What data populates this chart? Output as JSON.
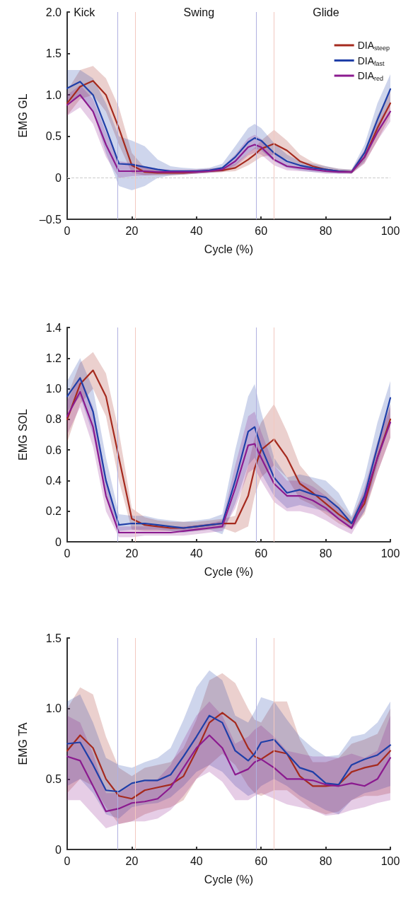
{
  "chart_data": [
    {
      "type": "line",
      "xlabel": "Cycle (%)",
      "ylabel": "EMG GL",
      "xlim": [
        0,
        100
      ],
      "xticks": [
        0,
        20,
        40,
        60,
        80,
        100
      ],
      "ylim": [
        -0.5,
        2
      ],
      "yticks": [
        {
          "value": -0.5,
          "label": "–0.5"
        },
        0,
        0.5,
        {
          "value": 1,
          "label": "1.0"
        },
        1.5,
        {
          "value": 2,
          "label": "2.0"
        }
      ],
      "grid": false,
      "marker": "none",
      "line_style": "solid",
      "legend": "top right",
      "x": [
        0,
        4,
        8,
        12,
        16,
        20,
        24,
        28,
        32,
        36,
        40,
        44,
        48,
        52,
        56,
        58,
        60,
        64,
        68,
        72,
        76,
        80,
        84,
        88,
        92,
        96,
        100
      ],
      "annotations": [
        "Kick",
        "Swing",
        "Glide"
      ],
      "ref_lines": [
        {
          "axis": "y",
          "value": 0,
          "color": "#cccccc",
          "line_style": "dashed"
        },
        {
          "axis": "x",
          "value": 15.7,
          "color": "#b0b0e0"
        },
        {
          "axis": "x",
          "value": 21,
          "color": "#f2c8c0"
        },
        {
          "axis": "x",
          "value": 58.5,
          "color": "#b0b0e0"
        },
        {
          "axis": "x",
          "value": 64,
          "color": "#f2c8c0"
        }
      ],
      "series": [
        {
          "name": "DIA$_{steep}$",
          "color": "#a52a1e",
          "values": [
            0.9,
            1.1,
            1.17,
            1.0,
            0.6,
            0.15,
            0.07,
            0.06,
            0.06,
            0.06,
            0.07,
            0.08,
            0.09,
            0.12,
            0.22,
            0.28,
            0.35,
            0.41,
            0.33,
            0.2,
            0.14,
            0.1,
            0.08,
            0.07,
            0.25,
            0.6,
            0.9
          ],
          "lower": [
            0.75,
            0.95,
            1.0,
            0.8,
            0.4,
            0.06,
            0.03,
            0.03,
            0.03,
            0.04,
            0.05,
            0.06,
            0.07,
            0.08,
            0.15,
            0.2,
            0.25,
            0.28,
            0.22,
            0.14,
            0.1,
            0.07,
            0.06,
            0.05,
            0.18,
            0.45,
            0.75
          ],
          "upper": [
            1.05,
            1.3,
            1.35,
            1.2,
            0.85,
            0.3,
            0.12,
            0.09,
            0.09,
            0.09,
            0.1,
            0.11,
            0.12,
            0.17,
            0.3,
            0.36,
            0.45,
            0.58,
            0.45,
            0.28,
            0.19,
            0.14,
            0.11,
            0.1,
            0.33,
            0.75,
            1.05
          ]
        },
        {
          "name": "DIA$_{fast}$",
          "color": "#1f3fa8",
          "values": [
            1.08,
            1.16,
            1.0,
            0.6,
            0.17,
            0.16,
            0.13,
            0.1,
            0.08,
            0.08,
            0.08,
            0.09,
            0.12,
            0.25,
            0.43,
            0.48,
            0.45,
            0.3,
            0.2,
            0.15,
            0.12,
            0.1,
            0.08,
            0.07,
            0.3,
            0.7,
            1.07
          ],
          "lower": [
            0.9,
            1.0,
            0.8,
            0.3,
            -0.1,
            -0.15,
            -0.1,
            0.0,
            0.03,
            0.04,
            0.05,
            0.06,
            0.08,
            0.15,
            0.3,
            0.35,
            0.33,
            0.2,
            0.12,
            0.09,
            0.07,
            0.06,
            0.05,
            0.05,
            0.2,
            0.55,
            0.9
          ],
          "upper": [
            1.3,
            1.3,
            1.2,
            0.9,
            0.5,
            0.45,
            0.38,
            0.22,
            0.14,
            0.12,
            0.11,
            0.12,
            0.17,
            0.38,
            0.6,
            0.65,
            0.6,
            0.42,
            0.28,
            0.2,
            0.17,
            0.14,
            0.11,
            0.1,
            0.4,
            0.9,
            1.25
          ]
        },
        {
          "name": "DIA$_{red}$",
          "color": "#8b1a8f",
          "values": [
            0.88,
            1.0,
            0.8,
            0.4,
            0.08,
            0.08,
            0.08,
            0.07,
            0.07,
            0.07,
            0.07,
            0.08,
            0.1,
            0.2,
            0.37,
            0.4,
            0.37,
            0.22,
            0.14,
            0.12,
            0.1,
            0.08,
            0.07,
            0.07,
            0.25,
            0.55,
            0.8
          ],
          "lower": [
            0.75,
            0.85,
            0.65,
            0.25,
            0.0,
            0.02,
            0.03,
            0.04,
            0.04,
            0.04,
            0.05,
            0.06,
            0.07,
            0.13,
            0.27,
            0.3,
            0.28,
            0.15,
            0.09,
            0.08,
            0.07,
            0.05,
            0.05,
            0.05,
            0.17,
            0.45,
            0.68
          ],
          "upper": [
            1.0,
            1.12,
            0.95,
            0.55,
            0.2,
            0.18,
            0.14,
            0.11,
            0.1,
            0.1,
            0.1,
            0.11,
            0.13,
            0.28,
            0.48,
            0.52,
            0.47,
            0.3,
            0.2,
            0.16,
            0.13,
            0.11,
            0.09,
            0.09,
            0.33,
            0.65,
            0.92
          ]
        }
      ]
    },
    {
      "type": "line",
      "xlabel": "Cycle (%)",
      "ylabel": "EMG SOL",
      "xlim": [
        0,
        100
      ],
      "xticks": [
        0,
        20,
        40,
        60,
        80,
        100
      ],
      "ylim": [
        0,
        1.4
      ],
      "yticks": [
        0,
        0.2,
        0.4,
        0.6,
        0.8,
        {
          "value": 1,
          "label": "1.0"
        },
        1.2,
        1.4
      ],
      "grid": false,
      "marker": "none",
      "line_style": "solid",
      "x": [
        0,
        4,
        8,
        12,
        16,
        20,
        24,
        28,
        32,
        36,
        40,
        44,
        48,
        52,
        56,
        58,
        60,
        64,
        68,
        72,
        76,
        80,
        84,
        88,
        92,
        96,
        100
      ],
      "ref_lines": [
        {
          "axis": "x",
          "value": 15.7,
          "color": "#b0b0e0"
        },
        {
          "axis": "x",
          "value": 21,
          "color": "#f2c8c0"
        },
        {
          "axis": "x",
          "value": 58.5,
          "color": "#b0b0e0"
        },
        {
          "axis": "x",
          "value": 64,
          "color": "#f2c8c0"
        }
      ],
      "series": [
        {
          "color": "#a52a1e",
          "values": [
            0.8,
            1.03,
            1.12,
            0.95,
            0.55,
            0.15,
            0.11,
            0.1,
            0.09,
            0.09,
            0.1,
            0.11,
            0.12,
            0.12,
            0.3,
            0.48,
            0.6,
            0.67,
            0.55,
            0.38,
            0.32,
            0.25,
            0.18,
            0.12,
            0.25,
            0.55,
            0.8
          ],
          "lower": [
            0.65,
            0.9,
            1.0,
            0.82,
            0.4,
            0.08,
            0.07,
            0.07,
            0.07,
            0.07,
            0.07,
            0.08,
            0.09,
            0.06,
            0.1,
            0.3,
            0.42,
            0.5,
            0.42,
            0.28,
            0.24,
            0.18,
            0.12,
            0.08,
            0.18,
            0.45,
            0.68
          ],
          "upper": [
            0.95,
            1.17,
            1.24,
            1.1,
            0.72,
            0.22,
            0.16,
            0.14,
            0.13,
            0.13,
            0.13,
            0.14,
            0.15,
            0.17,
            0.5,
            0.68,
            0.78,
            0.9,
            0.72,
            0.5,
            0.4,
            0.33,
            0.25,
            0.16,
            0.33,
            0.65,
            0.9
          ]
        },
        {
          "color": "#1f3fa8",
          "values": [
            0.95,
            1.07,
            0.85,
            0.4,
            0.11,
            0.12,
            0.12,
            0.11,
            0.1,
            0.09,
            0.1,
            0.11,
            0.12,
            0.4,
            0.72,
            0.75,
            0.62,
            0.42,
            0.32,
            0.34,
            0.31,
            0.29,
            0.22,
            0.12,
            0.3,
            0.62,
            0.94
          ],
          "lower": [
            0.85,
            0.95,
            0.7,
            0.3,
            0.07,
            0.08,
            0.08,
            0.08,
            0.07,
            0.06,
            0.07,
            0.08,
            0.05,
            0.25,
            0.5,
            0.55,
            0.45,
            0.3,
            0.22,
            0.24,
            0.22,
            0.2,
            0.15,
            0.08,
            0.2,
            0.5,
            0.8
          ],
          "upper": [
            1.05,
            1.2,
            1.0,
            0.55,
            0.18,
            0.17,
            0.17,
            0.15,
            0.14,
            0.13,
            0.14,
            0.15,
            0.18,
            0.6,
            0.95,
            1.03,
            0.85,
            0.55,
            0.42,
            0.44,
            0.42,
            0.4,
            0.32,
            0.17,
            0.42,
            0.78,
            1.05
          ]
        },
        {
          "color": "#8b1a8f",
          "values": [
            0.82,
            0.98,
            0.75,
            0.3,
            0.06,
            0.06,
            0.06,
            0.06,
            0.06,
            0.07,
            0.08,
            0.09,
            0.1,
            0.35,
            0.63,
            0.64,
            0.55,
            0.38,
            0.3,
            0.3,
            0.27,
            0.22,
            0.15,
            0.09,
            0.28,
            0.55,
            0.78
          ],
          "lower": [
            0.7,
            0.88,
            0.62,
            0.2,
            0.03,
            0.03,
            0.04,
            0.04,
            0.04,
            0.04,
            0.05,
            0.06,
            0.07,
            0.22,
            0.45,
            0.48,
            0.4,
            0.26,
            0.2,
            0.2,
            0.18,
            0.14,
            0.09,
            0.05,
            0.2,
            0.45,
            0.68
          ],
          "upper": [
            0.92,
            1.08,
            0.88,
            0.42,
            0.1,
            0.1,
            0.1,
            0.1,
            0.1,
            0.1,
            0.11,
            0.12,
            0.14,
            0.5,
            0.82,
            0.85,
            0.72,
            0.5,
            0.4,
            0.4,
            0.36,
            0.3,
            0.22,
            0.13,
            0.36,
            0.65,
            0.88
          ]
        }
      ]
    },
    {
      "type": "line",
      "xlabel": "Cycle (%)",
      "ylabel": "EMG TA",
      "xlim": [
        0,
        100
      ],
      "xticks": [
        0,
        20,
        40,
        60,
        80,
        100
      ],
      "ylim": [
        0,
        1.5
      ],
      "yticks": [
        0,
        0.5,
        {
          "value": 1,
          "label": "1.0"
        },
        1.5
      ],
      "grid": false,
      "marker": "none",
      "line_style": "solid",
      "x": [
        0,
        4,
        8,
        12,
        16,
        20,
        24,
        28,
        32,
        36,
        40,
        44,
        48,
        52,
        56,
        58,
        60,
        64,
        68,
        72,
        76,
        80,
        84,
        88,
        92,
        96,
        100
      ],
      "ref_lines": [
        {
          "axis": "x",
          "value": 15.7,
          "color": "#b0b0e0"
        },
        {
          "axis": "x",
          "value": 21,
          "color": "#f2c8c0"
        },
        {
          "axis": "x",
          "value": 58.5,
          "color": "#b0b0e0"
        },
        {
          "axis": "x",
          "value": 64,
          "color": "#f2c8c0"
        }
      ],
      "series": [
        {
          "color": "#a52a1e",
          "values": [
            0.7,
            0.81,
            0.72,
            0.5,
            0.38,
            0.36,
            0.42,
            0.44,
            0.46,
            0.52,
            0.7,
            0.9,
            0.97,
            0.9,
            0.72,
            0.66,
            0.64,
            0.7,
            0.68,
            0.52,
            0.45,
            0.45,
            0.46,
            0.55,
            0.58,
            0.6,
            0.7
          ],
          "lower": [
            0.4,
            0.5,
            0.45,
            0.3,
            0.18,
            0.2,
            0.25,
            0.28,
            0.3,
            0.35,
            0.5,
            0.6,
            0.68,
            0.6,
            0.45,
            0.4,
            0.38,
            0.42,
            0.42,
            0.35,
            0.28,
            0.25,
            0.27,
            0.35,
            0.38,
            0.38,
            0.4
          ],
          "upper": [
            1.0,
            1.15,
            1.1,
            0.8,
            0.58,
            0.52,
            0.58,
            0.6,
            0.62,
            0.72,
            0.92,
            1.2,
            1.25,
            1.18,
            1.0,
            0.92,
            0.9,
            1.05,
            1.05,
            0.78,
            0.62,
            0.62,
            0.65,
            0.75,
            0.78,
            0.82,
            1.0
          ]
        },
        {
          "color": "#1f3fa8",
          "values": [
            0.75,
            0.76,
            0.6,
            0.42,
            0.41,
            0.47,
            0.49,
            0.49,
            0.53,
            0.66,
            0.8,
            0.95,
            0.9,
            0.7,
            0.63,
            0.68,
            0.76,
            0.78,
            0.68,
            0.58,
            0.55,
            0.47,
            0.46,
            0.6,
            0.64,
            0.67,
            0.74
          ],
          "lower": [
            0.45,
            0.5,
            0.4,
            0.25,
            0.22,
            0.3,
            0.32,
            0.33,
            0.37,
            0.45,
            0.55,
            0.6,
            0.55,
            0.45,
            0.38,
            0.4,
            0.45,
            0.5,
            0.45,
            0.38,
            0.33,
            0.28,
            0.25,
            0.35,
            0.4,
            0.42,
            0.45
          ],
          "upper": [
            1.05,
            1.1,
            0.9,
            0.65,
            0.6,
            0.58,
            0.62,
            0.65,
            0.72,
            0.92,
            1.15,
            1.27,
            1.2,
            0.95,
            0.9,
            0.98,
            1.08,
            1.05,
            0.92,
            0.8,
            0.72,
            0.66,
            0.67,
            0.8,
            0.82,
            0.9,
            1.05
          ]
        },
        {
          "color": "#8b1a8f",
          "values": [
            0.66,
            0.63,
            0.45,
            0.27,
            0.29,
            0.33,
            0.34,
            0.36,
            0.44,
            0.58,
            0.72,
            0.81,
            0.72,
            0.53,
            0.57,
            0.62,
            0.64,
            0.58,
            0.5,
            0.5,
            0.49,
            0.46,
            0.45,
            0.47,
            0.45,
            0.5,
            0.65
          ],
          "lower": [
            0.35,
            0.35,
            0.25,
            0.15,
            0.18,
            0.2,
            0.2,
            0.22,
            0.28,
            0.38,
            0.5,
            0.55,
            0.48,
            0.35,
            0.35,
            0.38,
            0.4,
            0.36,
            0.32,
            0.3,
            0.28,
            0.24,
            0.25,
            0.28,
            0.3,
            0.33,
            0.35
          ],
          "upper": [
            0.95,
            0.9,
            0.68,
            0.4,
            0.4,
            0.46,
            0.48,
            0.5,
            0.6,
            0.78,
            0.95,
            1.05,
            0.95,
            0.75,
            0.8,
            0.85,
            0.88,
            0.8,
            0.7,
            0.68,
            0.66,
            0.66,
            0.65,
            0.68,
            0.65,
            0.7,
            0.95
          ]
        }
      ]
    }
  ]
}
